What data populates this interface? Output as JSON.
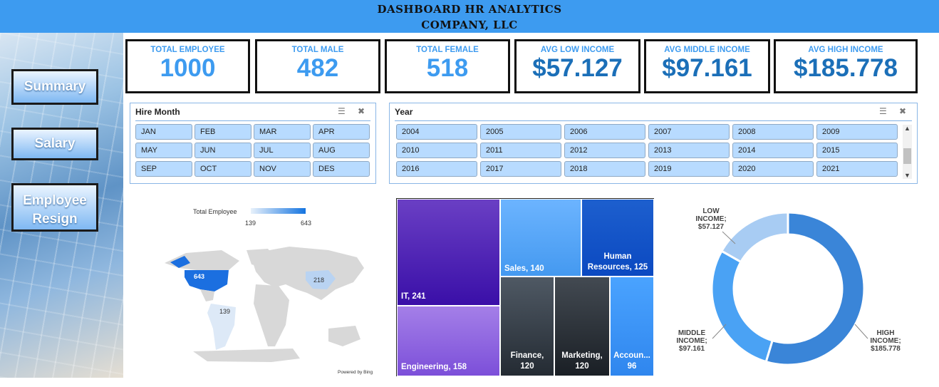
{
  "header": {
    "title_line1": "DASHBOARD HR ANALYTICS",
    "title_line2": "COMPANY, LLC"
  },
  "nav": {
    "summary": "Summary",
    "salary": "Salary",
    "resign_line1": "Employee",
    "resign_line2": "Resign"
  },
  "kpis": [
    {
      "label": "TOTAL EMPLOYEE",
      "value": "1000",
      "color": "#3d9bf0"
    },
    {
      "label": "TOTAL MALE",
      "value": "482",
      "color": "#3d9bf0"
    },
    {
      "label": "TOTAL FEMALE",
      "value": "518",
      "color": "#3d9bf0"
    },
    {
      "label": "AVG LOW INCOME",
      "value": "$57.127",
      "color": "#1b6fb8"
    },
    {
      "label": "AVG MIDDLE INCOME",
      "value": "$97.161",
      "color": "#1b6fb8"
    },
    {
      "label": "AVG HIGH INCOME",
      "value": "$185.778",
      "color": "#1b6fb8"
    }
  ],
  "hire_month": {
    "title": "Hire Month",
    "items": [
      "JAN",
      "FEB",
      "MAR",
      "APR",
      "MAY",
      "JUN",
      "JUL",
      "AUG",
      "SEP",
      "OCT",
      "NOV",
      "DES"
    ]
  },
  "year": {
    "title": "Year",
    "items": [
      "2004",
      "2005",
      "2006",
      "2007",
      "2008",
      "2009",
      "2010",
      "2011",
      "2012",
      "2013",
      "2014",
      "2015",
      "2016",
      "2017",
      "2018",
      "2019",
      "2020",
      "2021"
    ]
  },
  "map": {
    "legend_title": "Total Employee",
    "legend_min": "139",
    "legend_max": "643",
    "labels": {
      "us": "643",
      "china": "218",
      "brazil": "139"
    },
    "attribution": "Powered by Bing"
  },
  "treemap": {
    "tiles": [
      {
        "label": "IT, 241",
        "color_top": "#6a3fc4",
        "color_bottom": "#3a0fa8"
      },
      {
        "label": "Engineering, 158",
        "color_top": "#a47fe8",
        "color_bottom": "#7c4fd9"
      },
      {
        "label": "Sales, 140",
        "color_top": "#6cb4ff",
        "color_bottom": "#4499f0"
      },
      {
        "label_line1": "Human",
        "label_line2": "Resources, 125",
        "color_top": "#1d5fce",
        "color_bottom": "#0b49c1"
      },
      {
        "label_line1": "Finance,",
        "label_line2": "120",
        "color_top": "#4f5964",
        "color_bottom": "#242b33"
      },
      {
        "label_line1": "Marketing,",
        "label_line2": "120",
        "color_top": "#434a52",
        "color_bottom": "#1a1f25"
      },
      {
        "label_line1": "Accoun...",
        "label_line2": "96",
        "color_top": "#4aa3ff",
        "color_bottom": "#2f86ee"
      }
    ]
  },
  "chart_data": {
    "type": "pie",
    "categories": [
      "HIGH INCOME",
      "MIDDLE INCOME",
      "LOW INCOME"
    ],
    "values": [
      185.778,
      97.161,
      57.127
    ],
    "colors": [
      "#3a85d8",
      "#4aa2f4",
      "#a8ccf3"
    ],
    "label_text": {
      "low": [
        "LOW",
        "INCOME;",
        "$57.127"
      ],
      "middle": [
        "MIDDLE",
        "INCOME;",
        "$97.161"
      ],
      "high": [
        "HIGH",
        "INCOME;",
        "$185.778"
      ]
    }
  }
}
